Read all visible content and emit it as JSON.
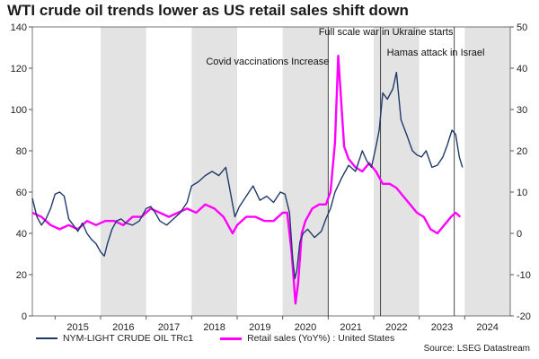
{
  "title": "WTI crude oil trends lower as US retail sales shift down",
  "source": "Source: LSEG Datastream",
  "colors": {
    "oil": "#1f3a68",
    "retail": "#ff00ff",
    "shade": "#e3e3e3",
    "event": "#333333"
  },
  "chart_data": {
    "type": "line",
    "title": "WTI crude oil trends lower as US retail sales shift down",
    "xlabel": "",
    "left_axis": {
      "ylim": [
        0,
        140
      ],
      "ticks": [
        0,
        20,
        40,
        60,
        80,
        100,
        120,
        140
      ]
    },
    "right_axis": {
      "ylim": [
        -20,
        50
      ],
      "ticks": [
        -20,
        -10,
        0,
        10,
        20,
        30,
        40,
        50
      ]
    },
    "x_range": [
      2014.5,
      2025.0
    ],
    "x_ticks": [
      "2015",
      "2016",
      "2017",
      "2018",
      "2019",
      "2020",
      "2021",
      "2022",
      "2023",
      "2024"
    ],
    "shaded_years": [
      2016,
      2018,
      2020,
      2022,
      2024
    ],
    "series": [
      {
        "name": "NYM-LIGHT CRUDE OIL TRc1",
        "axis": "left",
        "x": [
          2014.5,
          2014.6,
          2014.7,
          2014.8,
          2014.9,
          2015.0,
          2015.1,
          2015.2,
          2015.3,
          2015.4,
          2015.5,
          2015.6,
          2015.7,
          2015.8,
          2015.9,
          2016.0,
          2016.08,
          2016.15,
          2016.25,
          2016.35,
          2016.45,
          2016.55,
          2016.7,
          2016.85,
          2017.0,
          2017.1,
          2017.2,
          2017.3,
          2017.45,
          2017.6,
          2017.75,
          2017.9,
          2018.0,
          2018.15,
          2018.3,
          2018.45,
          2018.6,
          2018.75,
          2018.85,
          2018.95,
          2019.05,
          2019.2,
          2019.35,
          2019.5,
          2019.65,
          2019.8,
          2019.95,
          2020.05,
          2020.15,
          2020.22,
          2020.27,
          2020.31,
          2020.38,
          2020.45,
          2020.55,
          2020.7,
          2020.85,
          2020.95,
          2021.05,
          2021.15,
          2021.3,
          2021.45,
          2021.6,
          2021.75,
          2021.85,
          2021.95,
          2022.05,
          2022.12,
          2022.2,
          2022.3,
          2022.42,
          2022.5,
          2022.6,
          2022.72,
          2022.85,
          2022.95,
          2023.05,
          2023.15,
          2023.28,
          2023.4,
          2023.52,
          2023.62,
          2023.72,
          2023.8,
          2023.88,
          2023.95
        ],
        "values": [
          57,
          48,
          44,
          47,
          52,
          59,
          60,
          58,
          47,
          44,
          41,
          45,
          40,
          37,
          35,
          31,
          29,
          35,
          42,
          46,
          47,
          45,
          44,
          46,
          52,
          53,
          50,
          46,
          44,
          47,
          50,
          55,
          63,
          65,
          68,
          70,
          68,
          72,
          60,
          48,
          53,
          58,
          63,
          56,
          58,
          55,
          60,
          59,
          50,
          28,
          18,
          22,
          36,
          40,
          42,
          38,
          41,
          47,
          52,
          60,
          67,
          73,
          70,
          80,
          75,
          72,
          82,
          90,
          108,
          105,
          110,
          118,
          95,
          88,
          80,
          78,
          77,
          80,
          72,
          73,
          77,
          83,
          90,
          88,
          77,
          72
        ]
      },
      {
        "name": "Retail sales (YoY%) : United States",
        "axis": "right",
        "x": [
          2014.5,
          2014.7,
          2014.9,
          2015.1,
          2015.3,
          2015.5,
          2015.7,
          2015.9,
          2016.1,
          2016.3,
          2016.5,
          2016.7,
          2016.9,
          2017.1,
          2017.3,
          2017.5,
          2017.7,
          2017.9,
          2018.1,
          2018.3,
          2018.5,
          2018.7,
          2018.9,
          2019.0,
          2019.2,
          2019.4,
          2019.6,
          2019.8,
          2020.0,
          2020.1,
          2020.2,
          2020.28,
          2020.34,
          2020.42,
          2020.5,
          2020.65,
          2020.8,
          2020.95,
          2021.05,
          2021.15,
          2021.22,
          2021.28,
          2021.35,
          2021.45,
          2021.6,
          2021.75,
          2021.9,
          2022.05,
          2022.2,
          2022.35,
          2022.5,
          2022.65,
          2022.8,
          2022.95,
          2023.1,
          2023.25,
          2023.4,
          2023.55,
          2023.7,
          2023.8,
          2023.9
        ],
        "values": [
          5,
          4,
          2,
          1,
          2,
          1,
          3,
          2,
          3,
          3,
          2,
          4,
          4,
          6,
          5,
          4,
          5,
          6,
          5,
          7,
          6,
          4,
          0,
          2,
          4,
          4,
          3,
          3,
          5,
          5,
          -5,
          -17,
          -12,
          0,
          3,
          6,
          7,
          7,
          10,
          22,
          43,
          33,
          21,
          18,
          16,
          15,
          17,
          15,
          12,
          12,
          11,
          9,
          7,
          5,
          4,
          1,
          0,
          2,
          4,
          5,
          4
        ]
      }
    ],
    "events": [
      {
        "x": 2021.0,
        "label": "Covid vaccinations Increase"
      },
      {
        "x": 2022.15,
        "label": "Full scale war in Ukraine starts"
      },
      {
        "x": 2023.77,
        "label": "Hamas attack in Israel"
      }
    ]
  }
}
